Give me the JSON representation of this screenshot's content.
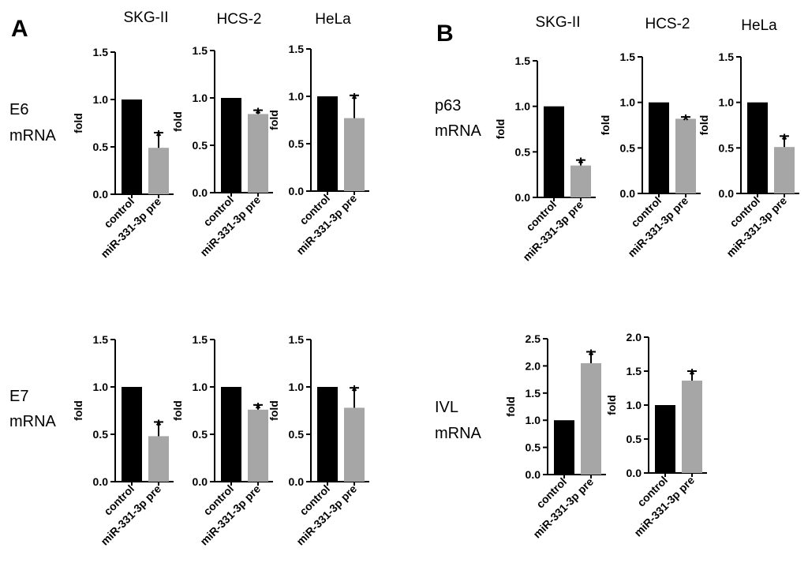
{
  "panels": {
    "A": {
      "letter": "A",
      "columns": [
        "SKG-II",
        "HCS-2",
        "HeLa"
      ],
      "rows": [
        {
          "label_line1": "E6",
          "label_line2": "mRNA"
        },
        {
          "label_line1": "E7",
          "label_line2": "mRNA"
        }
      ]
    },
    "B": {
      "letter": "B",
      "columns": [
        "SKG-II",
        "HCS-2",
        "HeLa"
      ],
      "rows": [
        {
          "label_line1": "p63",
          "label_line2": "mRNA"
        },
        {
          "label_line1": "IVL",
          "label_line2": "mRNA"
        }
      ]
    }
  },
  "colors": {
    "control": "#000000",
    "treatment": "#a6a6a6"
  },
  "chart_data": [
    {
      "id": "A-E6-SKG-II",
      "type": "bar",
      "categories": [
        "control",
        "miR-331-3p pre"
      ],
      "values": [
        1.0,
        0.49
      ],
      "errors": [
        0,
        0.16
      ],
      "significance": [
        "",
        "*"
      ],
      "ylabel": "fold",
      "ylim": [
        0,
        1.5
      ],
      "yticks": [
        "0.0",
        "0.5",
        "1.0",
        "1.5"
      ]
    },
    {
      "id": "A-E6-HCS-2",
      "type": "bar",
      "categories": [
        "control",
        "miR-331-3p pre"
      ],
      "values": [
        1.0,
        0.83
      ],
      "errors": [
        0,
        0.04
      ],
      "significance": [
        "",
        "*"
      ],
      "ylabel": "fold",
      "ylim": [
        0,
        1.5
      ],
      "yticks": [
        "0.0",
        "0.5",
        "1.0",
        "1.5"
      ]
    },
    {
      "id": "A-E6-HeLa",
      "type": "bar",
      "categories": [
        "control",
        "miR-331-3p pre"
      ],
      "values": [
        1.0,
        0.77
      ],
      "errors": [
        0,
        0.24
      ],
      "significance": [
        "",
        "*"
      ],
      "ylabel": "fold",
      "ylim": [
        0,
        1.5
      ],
      "yticks": [
        "0.0",
        "0.5",
        "1.0",
        "1.5"
      ]
    },
    {
      "id": "A-E7-SKG-II",
      "type": "bar",
      "categories": [
        "control",
        "miR-331-3p pre"
      ],
      "values": [
        1.0,
        0.48
      ],
      "errors": [
        0,
        0.15
      ],
      "significance": [
        "",
        "*"
      ],
      "ylabel": "fold",
      "ylim": [
        0,
        1.5
      ],
      "yticks": [
        "0.0",
        "0.5",
        "1.0",
        "1.5"
      ]
    },
    {
      "id": "A-E7-HCS-2",
      "type": "bar",
      "categories": [
        "control",
        "miR-331-3p pre"
      ],
      "values": [
        1.0,
        0.76
      ],
      "errors": [
        0,
        0.05
      ],
      "significance": [
        "",
        "*"
      ],
      "ylabel": "fold",
      "ylim": [
        0,
        1.5
      ],
      "yticks": [
        "0.0",
        "0.5",
        "1.0",
        "1.5"
      ]
    },
    {
      "id": "A-E7-HeLa",
      "type": "bar",
      "categories": [
        "control",
        "miR-331-3p pre"
      ],
      "values": [
        1.0,
        0.78
      ],
      "errors": [
        0,
        0.21
      ],
      "significance": [
        "",
        "*"
      ],
      "ylabel": "fold",
      "ylim": [
        0,
        1.5
      ],
      "yticks": [
        "0.0",
        "0.5",
        "1.0",
        "1.5"
      ]
    },
    {
      "id": "B-p63-SKG-II",
      "type": "bar",
      "categories": [
        "control",
        "miR-331-3p pre"
      ],
      "values": [
        1.0,
        0.35
      ],
      "errors": [
        0,
        0.06
      ],
      "significance": [
        "",
        "*"
      ],
      "ylabel": "fold",
      "ylim": [
        0,
        1.5
      ],
      "yticks": [
        "0.0",
        "0.5",
        "1.0",
        "1.5"
      ]
    },
    {
      "id": "B-p63-HCS-2",
      "type": "bar",
      "categories": [
        "control",
        "miR-331-3p pre"
      ],
      "values": [
        1.0,
        0.82
      ],
      "errors": [
        0,
        0.02
      ],
      "significance": [
        "",
        "*"
      ],
      "ylabel": "fold",
      "ylim": [
        0,
        1.5
      ],
      "yticks": [
        "0.0",
        "0.5",
        "1.0",
        "1.5"
      ]
    },
    {
      "id": "B-p63-HeLa",
      "type": "bar",
      "categories": [
        "control",
        "miR-331-3p pre"
      ],
      "values": [
        1.0,
        0.51
      ],
      "errors": [
        0,
        0.12
      ],
      "significance": [
        "",
        "*"
      ],
      "ylabel": "fold",
      "ylim": [
        0,
        1.5
      ],
      "yticks": [
        "0.0",
        "0.5",
        "1.0",
        "1.5"
      ]
    },
    {
      "id": "B-IVL-SKG-II",
      "type": "bar",
      "categories": [
        "control",
        "miR-331-3p pre"
      ],
      "values": [
        1.0,
        2.05
      ],
      "errors": [
        0,
        0.21
      ],
      "significance": [
        "",
        "*"
      ],
      "ylabel": "fold",
      "ylim": [
        0,
        2.5
      ],
      "yticks": [
        "0.0",
        "0.5",
        "1.0",
        "1.5",
        "2.0",
        "2.5"
      ]
    },
    {
      "id": "B-IVL-HCS-2",
      "type": "bar",
      "categories": [
        "control",
        "miR-331-3p pre"
      ],
      "values": [
        1.0,
        1.36
      ],
      "errors": [
        0,
        0.14
      ],
      "significance": [
        "",
        "*"
      ],
      "ylabel": "fold",
      "ylim": [
        0,
        2.0
      ],
      "yticks": [
        "0.0",
        "0.5",
        "1.0",
        "1.5",
        "2.0"
      ]
    }
  ]
}
